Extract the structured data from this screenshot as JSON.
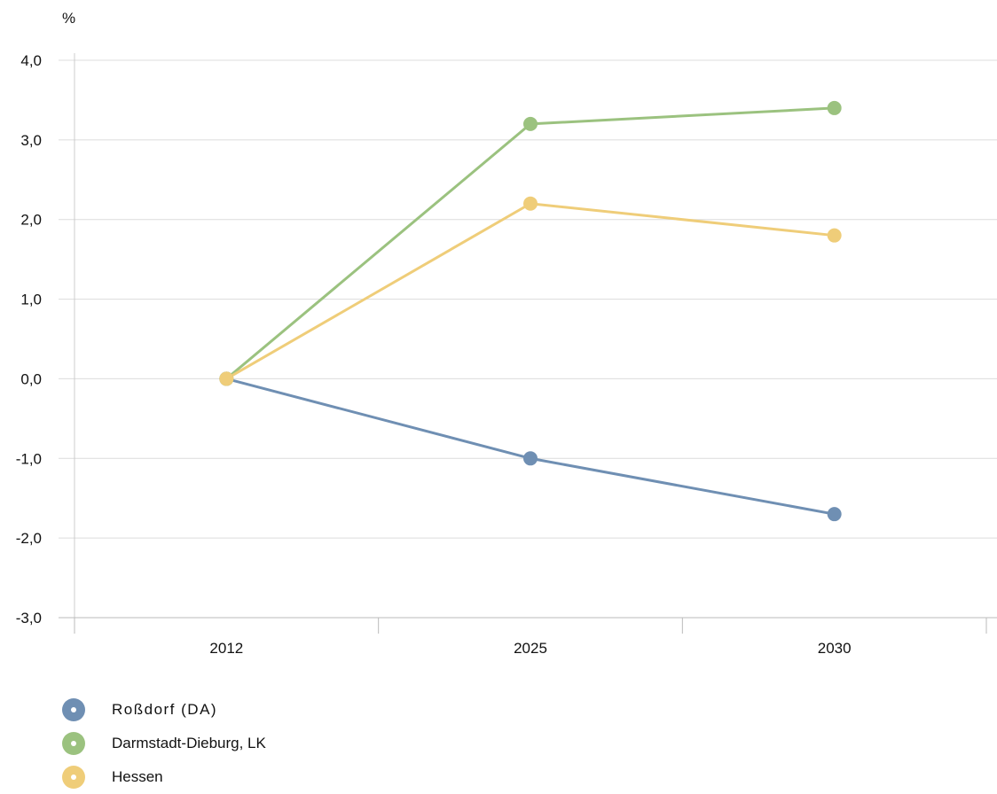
{
  "chart_data": {
    "type": "line",
    "title": "",
    "xlabel": "",
    "ylabel": "%",
    "categories": [
      "2012",
      "2025",
      "2030"
    ],
    "ylim": [
      -3.0,
      4.0
    ],
    "yticks": [
      "4,0",
      "3,0",
      "2,0",
      "1,0",
      "0,0",
      "-1,0",
      "-2,0",
      "-3,0"
    ],
    "ytick_values": [
      4,
      3,
      2,
      1,
      0,
      -1,
      -2,
      -3
    ],
    "grid": true,
    "legend_position": "bottom-left",
    "series": [
      {
        "name": "Roßdorf (DA)",
        "color": "#6f8fb3",
        "values": [
          0.0,
          -1.0,
          -1.7
        ]
      },
      {
        "name": "Darmstadt-Dieburg, LK",
        "color": "#9bc27f",
        "values": [
          0.0,
          3.2,
          3.4
        ]
      },
      {
        "name": "Hessen",
        "color": "#efcd79",
        "values": [
          0.0,
          2.2,
          1.8
        ]
      }
    ]
  }
}
